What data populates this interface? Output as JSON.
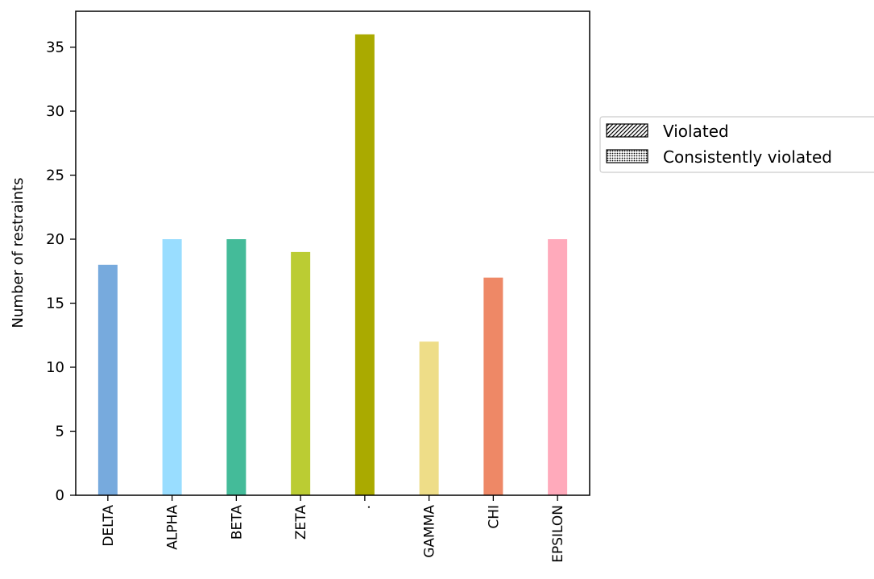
{
  "chart_data": {
    "type": "bar",
    "categories": [
      "DELTA",
      "ALPHA",
      "BETA",
      "ZETA",
      ".",
      "GAMMA",
      "CHI",
      "EPSILON"
    ],
    "values": [
      18,
      20,
      20,
      19,
      36,
      12,
      17,
      20
    ],
    "colors": [
      "#77aadd",
      "#99ddff",
      "#44bb99",
      "#bbcc33",
      "#aaaa00",
      "#eedd88",
      "#ee8866",
      "#ffaabb"
    ],
    "title": "",
    "xlabel": "",
    "ylabel": "Number of restraints",
    "ylim": [
      0,
      37.8
    ],
    "yticks": [
      0,
      5,
      10,
      15,
      20,
      25,
      30,
      35
    ],
    "grid": false,
    "legend": {
      "placement": "outside-right",
      "entries": [
        {
          "label": "Violated",
          "hatch": "diagonal"
        },
        {
          "label": "Consistently violated",
          "hatch": "dots"
        }
      ]
    }
  }
}
